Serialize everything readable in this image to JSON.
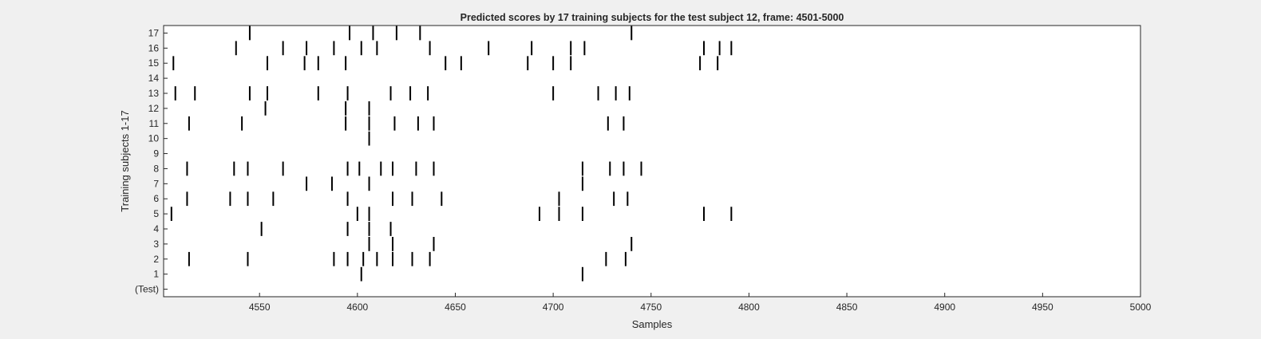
{
  "chart_data": {
    "type": "scatter",
    "title": "Predicted scores by 17 training subjects for the test subject 12, frame: 4501-5000",
    "xlabel": "Samples",
    "ylabel": "Training subjects 1-17",
    "xlim": [
      4501,
      5000
    ],
    "xticks": [
      4550,
      4600,
      4650,
      4700,
      4750,
      4800,
      4850,
      4900,
      4950,
      5000
    ],
    "yticklabels": [
      "(Test)",
      "1",
      "2",
      "3",
      "4",
      "5",
      "6",
      "7",
      "8",
      "9",
      "10",
      "11",
      "12",
      "13",
      "14",
      "15",
      "16",
      "17"
    ],
    "marker": "vertical-line",
    "grid": false,
    "legend": "none",
    "series": [
      {
        "row": 0,
        "x": []
      },
      {
        "row": 1,
        "x": [
          4602,
          4715
        ]
      },
      {
        "row": 2,
        "x": [
          4514,
          4544,
          4588,
          4595,
          4603,
          4610,
          4618,
          4628,
          4637,
          4727,
          4737
        ]
      },
      {
        "row": 3,
        "x": [
          4606,
          4618,
          4639,
          4740
        ]
      },
      {
        "row": 4,
        "x": [
          4551,
          4595,
          4606,
          4617
        ]
      },
      {
        "row": 5,
        "x": [
          4505,
          4600,
          4606,
          4693,
          4703,
          4715,
          4777,
          4791
        ]
      },
      {
        "row": 6,
        "x": [
          4513,
          4535,
          4544,
          4557,
          4595,
          4618,
          4628,
          4643,
          4703,
          4731,
          4738
        ]
      },
      {
        "row": 7,
        "x": [
          4574,
          4587,
          4606,
          4715
        ]
      },
      {
        "row": 8,
        "x": [
          4513,
          4537,
          4544,
          4562,
          4595,
          4601,
          4612,
          4618,
          4630,
          4639,
          4715,
          4729,
          4736,
          4745
        ]
      },
      {
        "row": 9,
        "x": []
      },
      {
        "row": 10,
        "x": [
          4606
        ]
      },
      {
        "row": 11,
        "x": [
          4514,
          4541,
          4594,
          4606,
          4619,
          4631,
          4639,
          4728,
          4736
        ]
      },
      {
        "row": 12,
        "x": [
          4553,
          4594,
          4606
        ]
      },
      {
        "row": 13,
        "x": [
          4507,
          4517,
          4545,
          4554,
          4580,
          4595,
          4617,
          4627,
          4636,
          4700,
          4723,
          4732,
          4739
        ]
      },
      {
        "row": 14,
        "x": []
      },
      {
        "row": 15,
        "x": [
          4506,
          4554,
          4573,
          4580,
          4594,
          4645,
          4653,
          4687,
          4700,
          4709,
          4775,
          4784
        ]
      },
      {
        "row": 16,
        "x": [
          4538,
          4562,
          4574,
          4588,
          4602,
          4610,
          4637,
          4667,
          4689,
          4709,
          4716,
          4777,
          4785,
          4791
        ]
      },
      {
        "row": 17,
        "x": [
          4545,
          4596,
          4608,
          4620,
          4632,
          4740
        ]
      }
    ]
  }
}
